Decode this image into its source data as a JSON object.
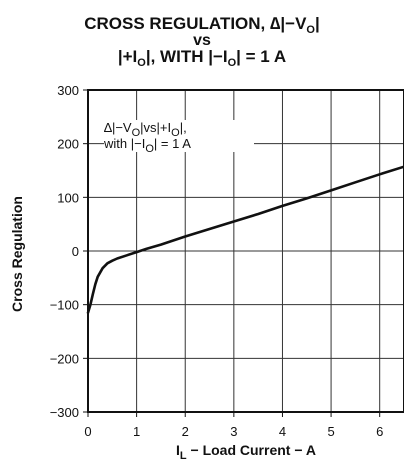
{
  "chart_data": {
    "type": "line",
    "title_line1_pre": "CROSS REGULATION, ∆|−V",
    "title_line1_sub": "O",
    "title_line1_post": "|",
    "title_line2": "vs",
    "title_line3_pre": "|+I",
    "title_line3_sub": "O",
    "title_line3_post": "|, WITH |−I",
    "title_line3_sub2": "O",
    "title_line3_end": "| = 1 A",
    "xlabel_main": "I",
    "xlabel_sub": "L",
    "xlabel_rest": " − Load Current − A",
    "ylabel": "Cross Regulation",
    "xlim": [
      0,
      6.5
    ],
    "ylim": [
      -300,
      300
    ],
    "xticks": [
      "0",
      "1",
      "2",
      "3",
      "4",
      "5",
      "6"
    ],
    "yticks": [
      "300",
      "200",
      "100",
      "0",
      "−100",
      "−200",
      "−300"
    ],
    "grid": true,
    "annotation_line1_a": "∆|−V",
    "annotation_line1_sub": "O",
    "annotation_line1_b": "|vs|+I",
    "annotation_line1_sub2": "O",
    "annotation_line1_c": "|,",
    "annotation_line2_a": "with |−I",
    "annotation_line2_sub": "O",
    "annotation_line2_b": "| = 1 A",
    "series": [
      {
        "x": [
          0.0,
          0.05,
          0.1,
          0.15,
          0.2,
          0.3,
          0.4,
          0.5,
          0.6,
          0.8,
          1.0,
          1.2,
          1.5,
          2.0,
          2.5,
          3.0,
          3.5,
          4.0,
          4.5,
          5.0,
          5.5,
          6.0,
          6.5
        ],
        "values": [
          -115,
          -100,
          -80,
          -62,
          -48,
          -32,
          -23,
          -18,
          -14,
          -8,
          -2,
          4,
          12,
          27,
          41,
          55,
          69,
          84,
          98,
          113,
          128,
          143,
          157
        ]
      }
    ]
  }
}
